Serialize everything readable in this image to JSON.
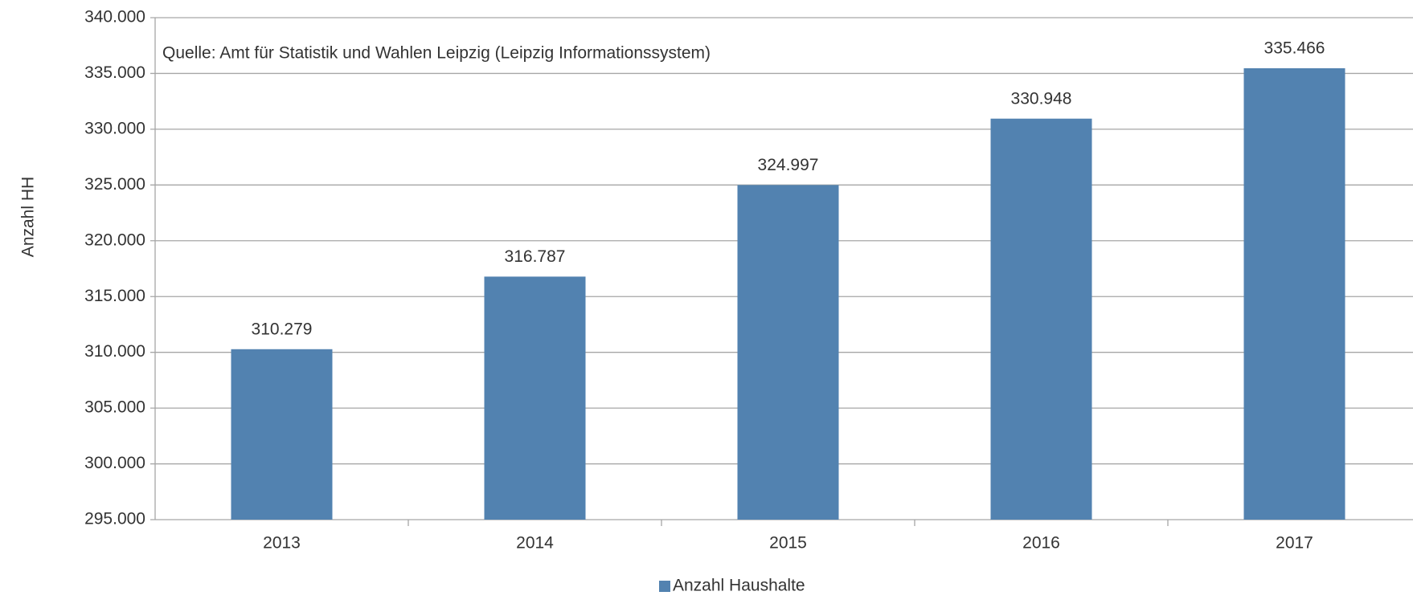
{
  "chart_data": {
    "type": "bar",
    "annotation": "Quelle: Amt für Statistik und Wahlen Leipzig (Leipzig Informationssystem)",
    "y_label": "Anzahl HH",
    "categories": [
      "2013",
      "2014",
      "2015",
      "2016",
      "2017"
    ],
    "series": [
      {
        "name": "Anzahl Haushalte",
        "color": "#5282b0",
        "values": [
          310279,
          316787,
          324997,
          330948,
          335466
        ],
        "value_labels": [
          "310.279",
          "316.787",
          "324.997",
          "330.948",
          "335.466"
        ]
      }
    ],
    "ylim": [
      295000,
      340000
    ],
    "yticks": [
      {
        "value": 295000,
        "label": "295.000"
      },
      {
        "value": 300000,
        "label": "300.000"
      },
      {
        "value": 305000,
        "label": "305.000"
      },
      {
        "value": 310000,
        "label": "310.000"
      },
      {
        "value": 315000,
        "label": "315.000"
      },
      {
        "value": 320000,
        "label": "320.000"
      },
      {
        "value": 325000,
        "label": "325.000"
      },
      {
        "value": 330000,
        "label": "330.000"
      },
      {
        "value": 335000,
        "label": "335.000"
      },
      {
        "value": 340000,
        "label": "340.000"
      }
    ],
    "grid": true,
    "legend": "bottom"
  }
}
